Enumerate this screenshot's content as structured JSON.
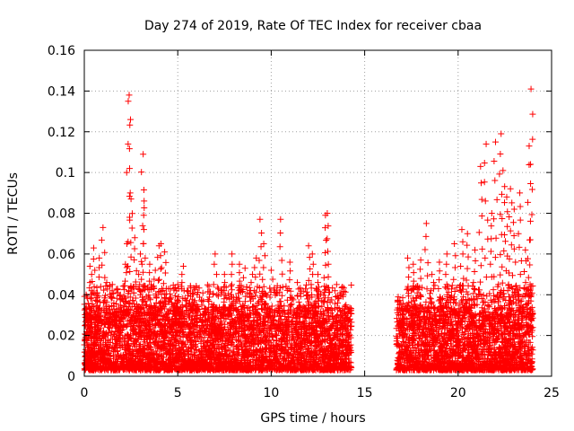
{
  "chart_data": {
    "type": "scatter",
    "title": "Day 274 of 2019, Rate Of TEC Index for receiver cbaa",
    "xlabel": "GPS time / hours",
    "ylabel": "ROTI / TECUs",
    "xlim": [
      0,
      25
    ],
    "ylim": [
      0,
      0.16
    ],
    "xticks": [
      0,
      5,
      10,
      15,
      20,
      25
    ],
    "xtick_labels": [
      "0",
      "5",
      "10",
      "15",
      "20",
      "25"
    ],
    "yticks": [
      0,
      0.02,
      0.04,
      0.06,
      0.08,
      0.1,
      0.12,
      0.14,
      0.16
    ],
    "ytick_labels": [
      "0",
      "0.02",
      "0.04",
      "0.06",
      "0.08",
      "0.1",
      "0.12",
      "0.14",
      "0.16"
    ],
    "grid": true,
    "marker": "+",
    "color": "#ff0000",
    "series": [
      {
        "name": "ROTI",
        "x": [
          0.1,
          0.3,
          0.5,
          0.8,
          1.0,
          1.2,
          1.5,
          1.8,
          2.0,
          2.2,
          2.35,
          2.4,
          2.5,
          2.7,
          3.0,
          3.15,
          3.2,
          3.5,
          3.8,
          4.0,
          4.1,
          4.3,
          4.6,
          5.0,
          5.3,
          5.5,
          5.8,
          6.0,
          6.5,
          7.0,
          7.5,
          7.9,
          8.3,
          8.6,
          9.0,
          9.2,
          9.4,
          9.6,
          10.0,
          10.5,
          11.0,
          11.4,
          12.0,
          12.2,
          12.5,
          12.9,
          13.0,
          13.5,
          14.0,
          14.2,
          17.0,
          17.3,
          17.6,
          18.0,
          18.3,
          18.6,
          19.0,
          19.4,
          19.8,
          20.2,
          20.5,
          20.9,
          21.2,
          21.5,
          21.8,
          22.0,
          22.3,
          22.4,
          22.6,
          22.8,
          23.0,
          23.3,
          23.6,
          23.8,
          23.9,
          0.2,
          0.7,
          1.1,
          1.6,
          2.1,
          2.6,
          3.3,
          3.9,
          4.4,
          4.9,
          5.6,
          6.2,
          6.8,
          7.3,
          7.8,
          8.4,
          8.9,
          9.5,
          10.2,
          10.8,
          11.3,
          11.8,
          12.4,
          12.8,
          13.3,
          13.8,
          14.1,
          17.1,
          17.5,
          17.9,
          18.5,
          19.1,
          19.6,
          20.1,
          20.7,
          21.1,
          21.6,
          22.1,
          22.7,
          23.2,
          23.7,
          23.85
        ],
        "y": [
          0.04,
          0.054,
          0.063,
          0.058,
          0.073,
          0.046,
          0.045,
          0.041,
          0.038,
          0.055,
          0.135,
          0.138,
          0.087,
          0.068,
          0.06,
          0.109,
          0.086,
          0.055,
          0.052,
          0.064,
          0.065,
          0.061,
          0.043,
          0.045,
          0.054,
          0.042,
          0.035,
          0.035,
          0.033,
          0.06,
          0.05,
          0.06,
          0.055,
          0.053,
          0.05,
          0.058,
          0.077,
          0.065,
          0.052,
          0.077,
          0.056,
          0.046,
          0.064,
          0.06,
          0.05,
          0.079,
          0.08,
          0.045,
          0.035,
          0.032,
          0.03,
          0.058,
          0.055,
          0.057,
          0.075,
          0.05,
          0.056,
          0.06,
          0.065,
          0.072,
          0.07,
          0.062,
          0.103,
          0.114,
          0.08,
          0.115,
          0.119,
          0.101,
          0.088,
          0.092,
          0.082,
          0.09,
          0.062,
          0.113,
          0.141,
          0.02,
          0.025,
          0.03,
          0.028,
          0.032,
          0.03,
          0.035,
          0.028,
          0.03,
          0.032,
          0.03,
          0.028,
          0.025,
          0.027,
          0.03,
          0.032,
          0.03,
          0.035,
          0.03,
          0.028,
          0.03,
          0.027,
          0.032,
          0.03,
          0.028,
          0.03,
          0.025,
          0.025,
          0.03,
          0.032,
          0.028,
          0.03,
          0.032,
          0.035,
          0.038,
          0.04,
          0.035,
          0.04,
          0.045,
          0.042,
          0.04,
          0.045
        ]
      }
    ],
    "dense_band": {
      "segments": [
        [
          0.0,
          14.3
        ],
        [
          16.7,
          24.0
        ]
      ],
      "typical_range": [
        0.003,
        0.03
      ],
      "note": "Dense cloud of red + markers; no data between about 14.3 and 16.7 hours"
    }
  }
}
